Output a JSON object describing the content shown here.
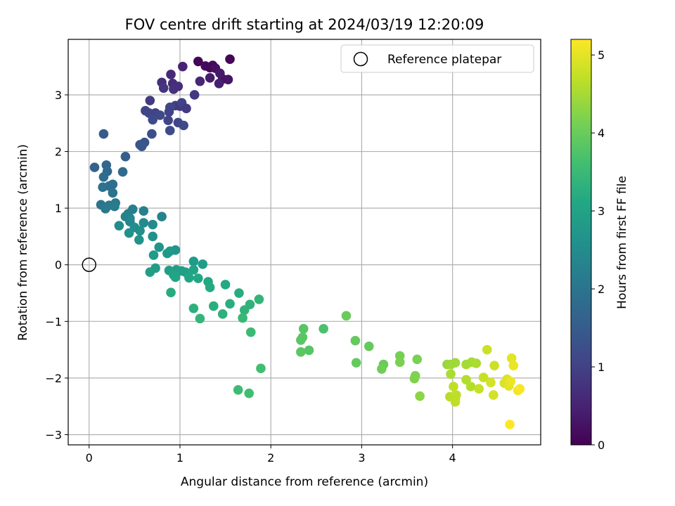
{
  "chart_data": {
    "type": "scatter",
    "title": "FOV centre drift starting at 2024/03/19 12:20:09",
    "xlabel": "Angular distance from reference (arcmin)",
    "ylabel": "Rotation from reference (arcmin)",
    "xlim": [
      -0.23,
      4.97
    ],
    "ylim": [
      -3.18,
      3.98
    ],
    "xticks": [
      0,
      1,
      2,
      3,
      4
    ],
    "yticks": [
      -3,
      -2,
      -1,
      0,
      1,
      2,
      3
    ],
    "grid": true,
    "legend": {
      "label": "Reference platepar",
      "location": "top-right"
    },
    "reference_point": {
      "x": 0,
      "y": 0
    },
    "colorbar": {
      "label": "Hours from first FF file",
      "colormap": "viridis",
      "range": [
        0,
        5.2
      ],
      "ticks": [
        0,
        1,
        2,
        3,
        4,
        5
      ]
    },
    "points": [
      {
        "x": 1.2,
        "y": 3.59,
        "h": 0.05
      },
      {
        "x": 1.28,
        "y": 3.51,
        "h": 0.15
      },
      {
        "x": 1.33,
        "y": 3.48,
        "h": 0.1
      },
      {
        "x": 1.36,
        "y": 3.52,
        "h": 0.12
      },
      {
        "x": 1.39,
        "y": 3.47,
        "h": 0.2
      },
      {
        "x": 1.47,
        "y": 3.28,
        "h": 0.25
      },
      {
        "x": 1.53,
        "y": 3.27,
        "h": 0.3
      },
      {
        "x": 1.55,
        "y": 3.63,
        "h": 0.08
      },
      {
        "x": 1.44,
        "y": 3.38,
        "h": 0.35
      },
      {
        "x": 1.33,
        "y": 3.3,
        "h": 0.4
      },
      {
        "x": 1.43,
        "y": 3.2,
        "h": 0.45
      },
      {
        "x": 1.03,
        "y": 3.5,
        "h": 0.5
      },
      {
        "x": 1.22,
        "y": 3.24,
        "h": 0.55
      },
      {
        "x": 0.9,
        "y": 3.36,
        "h": 0.6
      },
      {
        "x": 0.8,
        "y": 3.22,
        "h": 0.7
      },
      {
        "x": 0.82,
        "y": 3.12,
        "h": 0.8
      },
      {
        "x": 0.92,
        "y": 3.2,
        "h": 0.65
      },
      {
        "x": 0.93,
        "y": 3.1,
        "h": 0.75
      },
      {
        "x": 0.98,
        "y": 3.15,
        "h": 0.7
      },
      {
        "x": 1.16,
        "y": 3.0,
        "h": 0.85
      },
      {
        "x": 0.67,
        "y": 2.9,
        "h": 0.9
      },
      {
        "x": 0.95,
        "y": 2.81,
        "h": 0.95
      },
      {
        "x": 1.0,
        "y": 2.8,
        "h": 0.85
      },
      {
        "x": 1.02,
        "y": 2.86,
        "h": 1.0
      },
      {
        "x": 1.07,
        "y": 2.76,
        "h": 0.9
      },
      {
        "x": 0.89,
        "y": 2.78,
        "h": 1.1
      },
      {
        "x": 0.88,
        "y": 2.7,
        "h": 1.0
      },
      {
        "x": 0.62,
        "y": 2.72,
        "h": 1.05
      },
      {
        "x": 0.66,
        "y": 2.68,
        "h": 1.1
      },
      {
        "x": 0.73,
        "y": 2.68,
        "h": 1.0
      },
      {
        "x": 0.78,
        "y": 2.64,
        "h": 1.15
      },
      {
        "x": 0.7,
        "y": 2.56,
        "h": 1.2
      },
      {
        "x": 0.87,
        "y": 2.55,
        "h": 1.05
      },
      {
        "x": 0.98,
        "y": 2.51,
        "h": 1.1
      },
      {
        "x": 1.04,
        "y": 2.46,
        "h": 1.15
      },
      {
        "x": 0.89,
        "y": 2.37,
        "h": 1.2
      },
      {
        "x": 0.69,
        "y": 2.31,
        "h": 1.25
      },
      {
        "x": 0.61,
        "y": 2.16,
        "h": 1.3
      },
      {
        "x": 0.56,
        "y": 2.12,
        "h": 1.35
      },
      {
        "x": 0.58,
        "y": 2.09,
        "h": 1.4
      },
      {
        "x": 0.16,
        "y": 2.31,
        "h": 1.5
      },
      {
        "x": 0.4,
        "y": 1.91,
        "h": 1.55
      },
      {
        "x": 0.06,
        "y": 1.72,
        "h": 1.6
      },
      {
        "x": 0.19,
        "y": 1.76,
        "h": 1.7
      },
      {
        "x": 0.2,
        "y": 1.65,
        "h": 1.75
      },
      {
        "x": 0.37,
        "y": 1.64,
        "h": 1.8
      },
      {
        "x": 0.16,
        "y": 1.55,
        "h": 1.85
      },
      {
        "x": 0.26,
        "y": 1.42,
        "h": 1.9
      },
      {
        "x": 0.22,
        "y": 1.39,
        "h": 1.9
      },
      {
        "x": 0.15,
        "y": 1.37,
        "h": 1.95
      },
      {
        "x": 0.26,
        "y": 1.27,
        "h": 2.0
      },
      {
        "x": 0.13,
        "y": 1.06,
        "h": 2.0
      },
      {
        "x": 0.22,
        "y": 1.05,
        "h": 2.05
      },
      {
        "x": 0.29,
        "y": 1.09,
        "h": 2.1
      },
      {
        "x": 0.18,
        "y": 0.99,
        "h": 2.1
      },
      {
        "x": 0.28,
        "y": 1.03,
        "h": 2.15
      },
      {
        "x": 0.48,
        "y": 0.98,
        "h": 2.2
      },
      {
        "x": 0.6,
        "y": 0.95,
        "h": 2.25
      },
      {
        "x": 0.43,
        "y": 0.9,
        "h": 2.25
      },
      {
        "x": 0.8,
        "y": 0.85,
        "h": 2.3
      },
      {
        "x": 0.4,
        "y": 0.85,
        "h": 2.3
      },
      {
        "x": 0.45,
        "y": 0.82,
        "h": 2.35
      },
      {
        "x": 0.45,
        "y": 0.76,
        "h": 2.4
      },
      {
        "x": 0.6,
        "y": 0.74,
        "h": 2.45
      },
      {
        "x": 0.7,
        "y": 0.71,
        "h": 2.45
      },
      {
        "x": 0.33,
        "y": 0.69,
        "h": 2.5
      },
      {
        "x": 0.5,
        "y": 0.66,
        "h": 2.5
      },
      {
        "x": 0.56,
        "y": 0.6,
        "h": 2.55
      },
      {
        "x": 0.44,
        "y": 0.56,
        "h": 2.6
      },
      {
        "x": 0.7,
        "y": 0.5,
        "h": 2.6
      },
      {
        "x": 0.55,
        "y": 0.44,
        "h": 2.65
      },
      {
        "x": 0.77,
        "y": 0.31,
        "h": 2.7
      },
      {
        "x": 0.95,
        "y": 0.26,
        "h": 2.7
      },
      {
        "x": 0.89,
        "y": 0.24,
        "h": 2.75
      },
      {
        "x": 0.86,
        "y": 0.2,
        "h": 2.75
      },
      {
        "x": 0.71,
        "y": 0.17,
        "h": 2.8
      },
      {
        "x": 1.15,
        "y": 0.06,
        "h": 2.8
      },
      {
        "x": 1.25,
        "y": 0.01,
        "h": 2.85
      },
      {
        "x": 0.73,
        "y": -0.06,
        "h": 2.85
      },
      {
        "x": 0.67,
        "y": -0.13,
        "h": 2.9
      },
      {
        "x": 0.88,
        "y": -0.1,
        "h": 2.9
      },
      {
        "x": 0.96,
        "y": -0.09,
        "h": 2.9
      },
      {
        "x": 1.02,
        "y": -0.11,
        "h": 2.95
      },
      {
        "x": 1.06,
        "y": -0.13,
        "h": 2.95
      },
      {
        "x": 1.15,
        "y": -0.09,
        "h": 3.0
      },
      {
        "x": 0.93,
        "y": -0.18,
        "h": 3.0
      },
      {
        "x": 0.95,
        "y": -0.22,
        "h": 3.05
      },
      {
        "x": 1.1,
        "y": -0.23,
        "h": 3.05
      },
      {
        "x": 1.2,
        "y": -0.24,
        "h": 3.1
      },
      {
        "x": 1.31,
        "y": -0.3,
        "h": 3.1
      },
      {
        "x": 1.5,
        "y": -0.35,
        "h": 3.15
      },
      {
        "x": 1.33,
        "y": -0.4,
        "h": 3.15
      },
      {
        "x": 0.9,
        "y": -0.49,
        "h": 3.2
      },
      {
        "x": 1.65,
        "y": -0.5,
        "h": 3.2
      },
      {
        "x": 1.37,
        "y": -0.73,
        "h": 3.25
      },
      {
        "x": 1.55,
        "y": -0.69,
        "h": 3.25
      },
      {
        "x": 1.15,
        "y": -0.77,
        "h": 3.3
      },
      {
        "x": 1.47,
        "y": -0.87,
        "h": 3.3
      },
      {
        "x": 1.71,
        "y": -0.8,
        "h": 3.35
      },
      {
        "x": 1.77,
        "y": -0.7,
        "h": 3.35
      },
      {
        "x": 1.87,
        "y": -0.61,
        "h": 3.4
      },
      {
        "x": 1.22,
        "y": -0.95,
        "h": 3.4
      },
      {
        "x": 1.69,
        "y": -0.94,
        "h": 3.45
      },
      {
        "x": 1.78,
        "y": -1.19,
        "h": 3.5
      },
      {
        "x": 1.89,
        "y": -1.83,
        "h": 3.6
      },
      {
        "x": 1.64,
        "y": -2.21,
        "h": 3.55
      },
      {
        "x": 1.76,
        "y": -2.27,
        "h": 3.6
      },
      {
        "x": 2.36,
        "y": -1.13,
        "h": 3.8
      },
      {
        "x": 2.58,
        "y": -1.13,
        "h": 3.7
      },
      {
        "x": 2.35,
        "y": -1.28,
        "h": 3.85
      },
      {
        "x": 2.33,
        "y": -1.33,
        "h": 3.85
      },
      {
        "x": 2.42,
        "y": -1.51,
        "h": 3.8
      },
      {
        "x": 2.33,
        "y": -1.54,
        "h": 3.85
      },
      {
        "x": 2.83,
        "y": -0.9,
        "h": 4.0
      },
      {
        "x": 2.93,
        "y": -1.34,
        "h": 3.95
      },
      {
        "x": 3.08,
        "y": -1.44,
        "h": 3.95
      },
      {
        "x": 2.94,
        "y": -1.73,
        "h": 3.95
      },
      {
        "x": 3.24,
        "y": -1.76,
        "h": 4.0
      },
      {
        "x": 3.22,
        "y": -1.84,
        "h": 4.05
      },
      {
        "x": 3.42,
        "y": -1.61,
        "h": 4.1
      },
      {
        "x": 3.42,
        "y": -1.72,
        "h": 4.15
      },
      {
        "x": 3.61,
        "y": -1.67,
        "h": 4.15
      },
      {
        "x": 3.59,
        "y": -1.96,
        "h": 4.2
      },
      {
        "x": 3.58,
        "y": -2.01,
        "h": 4.2
      },
      {
        "x": 3.64,
        "y": -2.32,
        "h": 4.3
      },
      {
        "x": 3.94,
        "y": -1.76,
        "h": 4.4
      },
      {
        "x": 3.98,
        "y": -1.76,
        "h": 4.45
      },
      {
        "x": 4.03,
        "y": -1.73,
        "h": 4.45
      },
      {
        "x": 4.15,
        "y": -1.76,
        "h": 4.5
      },
      {
        "x": 4.21,
        "y": -1.72,
        "h": 4.5
      },
      {
        "x": 4.26,
        "y": -1.74,
        "h": 4.55
      },
      {
        "x": 3.98,
        "y": -1.93,
        "h": 4.55
      },
      {
        "x": 4.15,
        "y": -2.03,
        "h": 4.6
      },
      {
        "x": 4.2,
        "y": -2.15,
        "h": 4.6
      },
      {
        "x": 3.97,
        "y": -2.33,
        "h": 4.65
      },
      {
        "x": 4.03,
        "y": -2.36,
        "h": 4.65
      },
      {
        "x": 4.03,
        "y": -2.42,
        "h": 4.7
      },
      {
        "x": 4.04,
        "y": -2.3,
        "h": 4.7
      },
      {
        "x": 4.01,
        "y": -2.15,
        "h": 4.7
      },
      {
        "x": 4.29,
        "y": -2.19,
        "h": 4.75
      },
      {
        "x": 4.34,
        "y": -1.99,
        "h": 4.75
      },
      {
        "x": 4.38,
        "y": -1.5,
        "h": 4.8
      },
      {
        "x": 4.46,
        "y": -1.78,
        "h": 4.8
      },
      {
        "x": 4.42,
        "y": -2.08,
        "h": 4.85
      },
      {
        "x": 4.45,
        "y": -2.3,
        "h": 4.85
      },
      {
        "x": 4.57,
        "y": -2.09,
        "h": 4.9
      },
      {
        "x": 4.6,
        "y": -2.02,
        "h": 4.95
      },
      {
        "x": 4.62,
        "y": -2.14,
        "h": 5.0
      },
      {
        "x": 4.64,
        "y": -2.06,
        "h": 5.05
      },
      {
        "x": 4.65,
        "y": -1.65,
        "h": 5.0
      },
      {
        "x": 4.67,
        "y": -1.78,
        "h": 5.05
      },
      {
        "x": 4.72,
        "y": -2.22,
        "h": 5.1
      },
      {
        "x": 4.74,
        "y": -2.19,
        "h": 5.15
      },
      {
        "x": 4.63,
        "y": -2.82,
        "h": 5.2
      }
    ]
  }
}
